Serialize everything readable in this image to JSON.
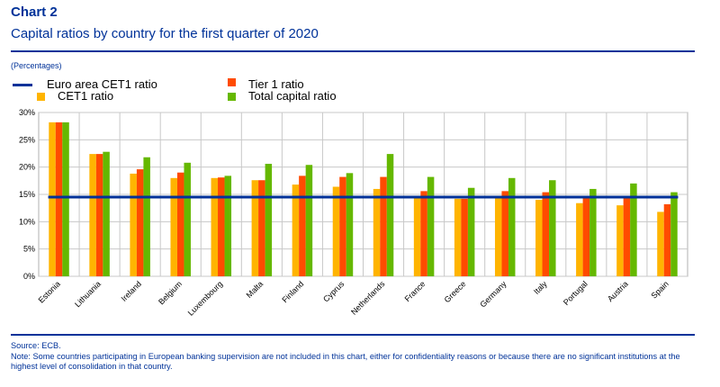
{
  "header": {
    "chart_label": "Chart 2",
    "title": "Capital ratios by country for the first quarter of 2020",
    "units": "(Percentages)"
  },
  "footer": {
    "source": "Source: ECB.",
    "note": "Note: Some countries participating in European banking supervision are not included in this chart, either for confidentiality reasons or because there are no significant institutions at the highest level of consolidation in that country."
  },
  "colors": {
    "brand": "#003299",
    "cet1": "#FFB400",
    "tier1": "#FF4B00",
    "total": "#65B800",
    "euro_area_line": "#003299"
  },
  "chart_data": {
    "type": "bar",
    "categories": [
      "Estonia",
      "Lithuania",
      "Ireland",
      "Belgium",
      "Luxembourg",
      "Malta",
      "Finland",
      "Cyprus",
      "Netherlands",
      "France",
      "Greece",
      "Germany",
      "Italy",
      "Portugal",
      "Austria",
      "Spain"
    ],
    "series": [
      {
        "name": "CET1 ratio",
        "color": "#FFB400",
        "values": [
          28.2,
          22.4,
          18.8,
          18.0,
          18.0,
          17.6,
          16.8,
          16.4,
          16.0,
          14.3,
          14.2,
          14.3,
          14.0,
          13.4,
          13.0,
          11.8
        ]
      },
      {
        "name": "Tier 1 ratio",
        "color": "#FF4B00",
        "values": [
          28.2,
          22.4,
          19.6,
          19.0,
          18.1,
          17.6,
          18.4,
          18.2,
          18.2,
          15.6,
          14.2,
          15.6,
          15.4,
          14.4,
          14.3,
          13.2
        ]
      },
      {
        "name": "Total capital ratio",
        "color": "#65B800",
        "values": [
          28.2,
          22.8,
          21.8,
          20.8,
          18.4,
          20.6,
          20.4,
          18.9,
          22.4,
          18.2,
          16.2,
          18.0,
          17.6,
          16.0,
          17.0,
          15.4
        ]
      }
    ],
    "reference_line": {
      "name": "Euro area CET1 ratio",
      "color": "#003299",
      "value": 14.5
    },
    "legend_order": [
      "Euro area CET1 ratio",
      "Tier 1 ratio",
      "CET1 ratio",
      "Total capital ratio"
    ],
    "ylim": [
      0,
      30
    ],
    "yticks": [
      "0%",
      "5%",
      "10%",
      "15%",
      "20%",
      "25%",
      "30%"
    ],
    "ytick_values": [
      0,
      5,
      10,
      15,
      20,
      25,
      30
    ],
    "grid": true,
    "legend_position": "top-left",
    "xlabel": "",
    "ylabel": ""
  }
}
